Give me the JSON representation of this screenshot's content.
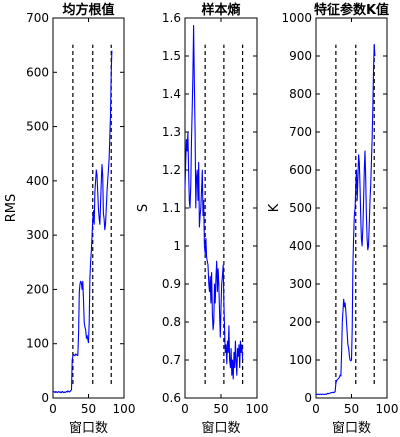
{
  "chart_data": [
    {
      "type": "line",
      "title": "均方根值",
      "xlabel": "",
      "ylabel": "RMS",
      "xlim": [
        0,
        100
      ],
      "ylim": [
        0,
        700
      ],
      "xticks": [
        "0",
        "50",
        "100"
      ],
      "yticks": [
        "0",
        "100",
        "200",
        "300",
        "400",
        "500",
        "600",
        "700"
      ],
      "grid": false,
      "line_color": "#0000ff",
      "divider_x": [
        28,
        56,
        82
      ],
      "x": [
        0,
        1,
        2,
        3,
        4,
        5,
        6,
        7,
        8,
        9,
        10,
        11,
        12,
        13,
        14,
        15,
        16,
        17,
        18,
        19,
        20,
        21,
        22,
        23,
        24,
        25,
        26,
        27,
        28,
        29,
        30,
        31,
        32,
        33,
        34,
        35,
        36,
        37,
        38,
        39,
        40,
        41,
        42,
        43,
        44,
        45,
        46,
        47,
        48,
        49,
        50,
        51,
        52,
        53,
        54,
        55,
        56,
        57,
        58,
        59,
        60,
        61,
        62,
        63,
        64,
        65,
        66,
        67,
        68,
        69,
        70,
        71,
        72,
        73,
        74,
        75,
        76,
        77,
        78,
        79,
        80,
        81,
        82,
        83
      ],
      "y": [
        12,
        12,
        11,
        10,
        12,
        11,
        10,
        11,
        12,
        11,
        10,
        11,
        10,
        12,
        11,
        10,
        11,
        10,
        11,
        12,
        11,
        13,
        12,
        11,
        12,
        14,
        15,
        70,
        77,
        80,
        79,
        78,
        81,
        80,
        79,
        78,
        120,
        195,
        210,
        215,
        212,
        200,
        215,
        180,
        140,
        130,
        125,
        110,
        115,
        108,
        102,
        140,
        220,
        250,
        270,
        300,
        330,
        345,
        320,
        380,
        400,
        420,
        410,
        380,
        350,
        330,
        320,
        360,
        400,
        430,
        410,
        340,
        330,
        310,
        320,
        350,
        380,
        400,
        420,
        440,
        480,
        520,
        600,
        640
      ]
    },
    {
      "type": "line",
      "title": "样本熵",
      "xlabel": "",
      "ylabel": "S",
      "xlim": [
        0,
        100
      ],
      "ylim": [
        0.6,
        1.6
      ],
      "xticks": [
        "0",
        "50",
        "100"
      ],
      "yticks": [
        "0.6",
        "0.7",
        "0.8",
        "0.9",
        "1",
        "1.1",
        "1.2",
        "1.3",
        "1.4",
        "1.5",
        "1.6"
      ],
      "grid": false,
      "line_color": "#0000ff",
      "divider_x": [
        28,
        54,
        80
      ],
      "x": [
        0,
        1,
        2,
        3,
        4,
        5,
        6,
        7,
        8,
        9,
        10,
        11,
        12,
        13,
        14,
        15,
        16,
        17,
        18,
        19,
        20,
        21,
        22,
        23,
        24,
        25,
        26,
        27,
        28,
        29,
        30,
        31,
        32,
        33,
        34,
        35,
        36,
        37,
        38,
        39,
        40,
        41,
        42,
        43,
        44,
        45,
        46,
        47,
        48,
        49,
        50,
        51,
        52,
        53,
        54,
        55,
        56,
        57,
        58,
        59,
        60,
        61,
        62,
        63,
        64,
        65,
        66,
        67,
        68,
        69,
        70,
        71,
        72,
        73,
        74,
        75,
        76,
        77,
        78,
        79,
        80
      ],
      "y": [
        1.15,
        1.22,
        1.28,
        1.25,
        1.3,
        1.2,
        1.12,
        1.1,
        1.16,
        1.28,
        1.36,
        1.45,
        1.58,
        1.42,
        1.3,
        1.1,
        1.18,
        1.2,
        1.12,
        1.22,
        1.05,
        1.08,
        1.1,
        1.15,
        1.2,
        1.08,
        1.12,
        1.0,
        0.98,
        1.02,
        0.97,
        0.96,
        0.95,
        0.9,
        0.88,
        0.92,
        0.85,
        0.93,
        0.82,
        0.78,
        0.8,
        0.9,
        0.85,
        0.92,
        0.96,
        0.88,
        0.94,
        0.9,
        0.82,
        0.76,
        0.84,
        0.9,
        0.92,
        0.95,
        0.85,
        0.78,
        0.72,
        0.74,
        0.69,
        0.75,
        0.72,
        0.79,
        0.7,
        0.68,
        0.73,
        0.66,
        0.7,
        0.65,
        0.72,
        0.68,
        0.75,
        0.7,
        0.66,
        0.73,
        0.71,
        0.74,
        0.68,
        0.75,
        0.72,
        0.74,
        0.7
      ]
    },
    {
      "type": "line",
      "title": "特征参数K值",
      "xlabel": "",
      "ylabel": "K",
      "xlim": [
        0,
        100
      ],
      "ylim": [
        0,
        1000
      ],
      "xticks": [
        "0",
        "50",
        "100"
      ],
      "yticks": [
        "0",
        "100",
        "200",
        "300",
        "400",
        "500",
        "600",
        "700",
        "800",
        "900",
        "1000"
      ],
      "grid": false,
      "line_color": "#0000ff",
      "divider_x": [
        28,
        56,
        82
      ],
      "x": [
        0,
        1,
        2,
        3,
        4,
        5,
        6,
        7,
        8,
        9,
        10,
        11,
        12,
        13,
        14,
        15,
        16,
        17,
        18,
        19,
        20,
        21,
        22,
        23,
        24,
        25,
        26,
        27,
        28,
        29,
        30,
        31,
        32,
        33,
        34,
        35,
        36,
        37,
        38,
        39,
        40,
        41,
        42,
        43,
        44,
        45,
        46,
        47,
        48,
        49,
        50,
        51,
        52,
        53,
        54,
        55,
        56,
        57,
        58,
        59,
        60,
        61,
        62,
        63,
        64,
        65,
        66,
        67,
        68,
        69,
        70,
        71,
        72,
        73,
        74,
        75,
        76,
        77,
        78,
        79,
        80,
        81,
        82,
        83
      ],
      "y": [
        10,
        10,
        9,
        10,
        10,
        9,
        10,
        10,
        9,
        10,
        10,
        10,
        9,
        10,
        10,
        10,
        12,
        11,
        12,
        12,
        13,
        14,
        14,
        15,
        14,
        15,
        15,
        18,
        40,
        45,
        48,
        50,
        52,
        55,
        60,
        58,
        120,
        200,
        230,
        260,
        240,
        250,
        230,
        200,
        170,
        140,
        130,
        110,
        100,
        98,
        100,
        180,
        350,
        420,
        480,
        500,
        560,
        600,
        520,
        580,
        640,
        620,
        560,
        480,
        420,
        400,
        450,
        520,
        600,
        650,
        580,
        480,
        420,
        390,
        400,
        460,
        520,
        560,
        620,
        680,
        760,
        860,
        930,
        900
      ]
    }
  ]
}
